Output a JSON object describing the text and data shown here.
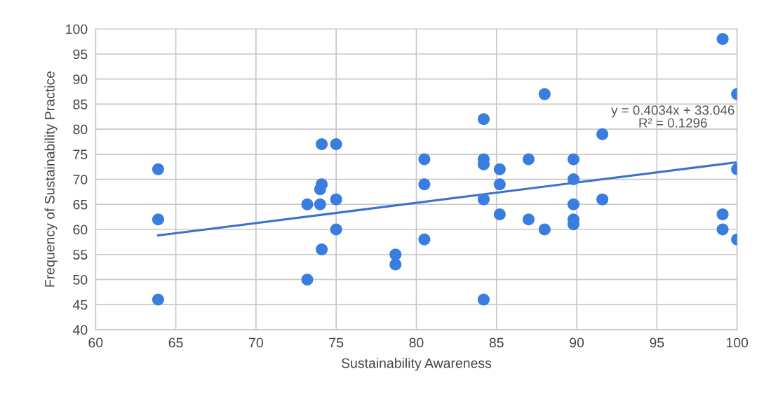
{
  "chart_data": {
    "type": "scatter",
    "xlabel": "Sustainability Awareness",
    "ylabel": "Frequency of Sustainability Practice",
    "xlim": [
      60,
      100
    ],
    "ylim": [
      40,
      100
    ],
    "xticks": [
      60,
      65,
      70,
      75,
      80,
      85,
      90,
      95,
      100
    ],
    "yticks": [
      40,
      45,
      50,
      55,
      60,
      65,
      70,
      75,
      80,
      85,
      90,
      95,
      100
    ],
    "grid": true,
    "marker": "circle",
    "series": [
      {
        "color": "#3a7de0",
        "x": [
          63.9,
          63.9,
          63.9,
          73.2,
          73.2,
          74.0,
          74.0,
          74.1,
          74.1,
          74.1,
          75.0,
          75.0,
          75.0,
          78.7,
          78.7,
          80.5,
          80.5,
          80.5,
          84.2,
          84.2,
          84.2,
          84.2,
          84.2,
          85.2,
          85.2,
          85.2,
          87.0,
          87.0,
          88.0,
          88.0,
          89.8,
          89.8,
          89.8,
          89.8,
          89.8,
          91.6,
          91.6,
          99.1,
          99.1,
          99.1,
          100,
          100,
          100
        ],
        "values": [
          72,
          62,
          46,
          65,
          50,
          68,
          65,
          69,
          77,
          56,
          77,
          66,
          60,
          55,
          53,
          74,
          69,
          58,
          82,
          74,
          73,
          66,
          46,
          72,
          69,
          63,
          74,
          62,
          87,
          60,
          74,
          70,
          65,
          62,
          61,
          79,
          66,
          98,
          63,
          60,
          87,
          72,
          58
        ]
      },
      {
        "type": "line",
        "color": "#3a72cc",
        "marker": "none",
        "x": [
          63.9,
          100
        ],
        "values": [
          58.8,
          73.4
        ]
      }
    ],
    "annotations": [
      "y = 0.4034x + 33.046\nR² = 0.1296"
    ]
  }
}
